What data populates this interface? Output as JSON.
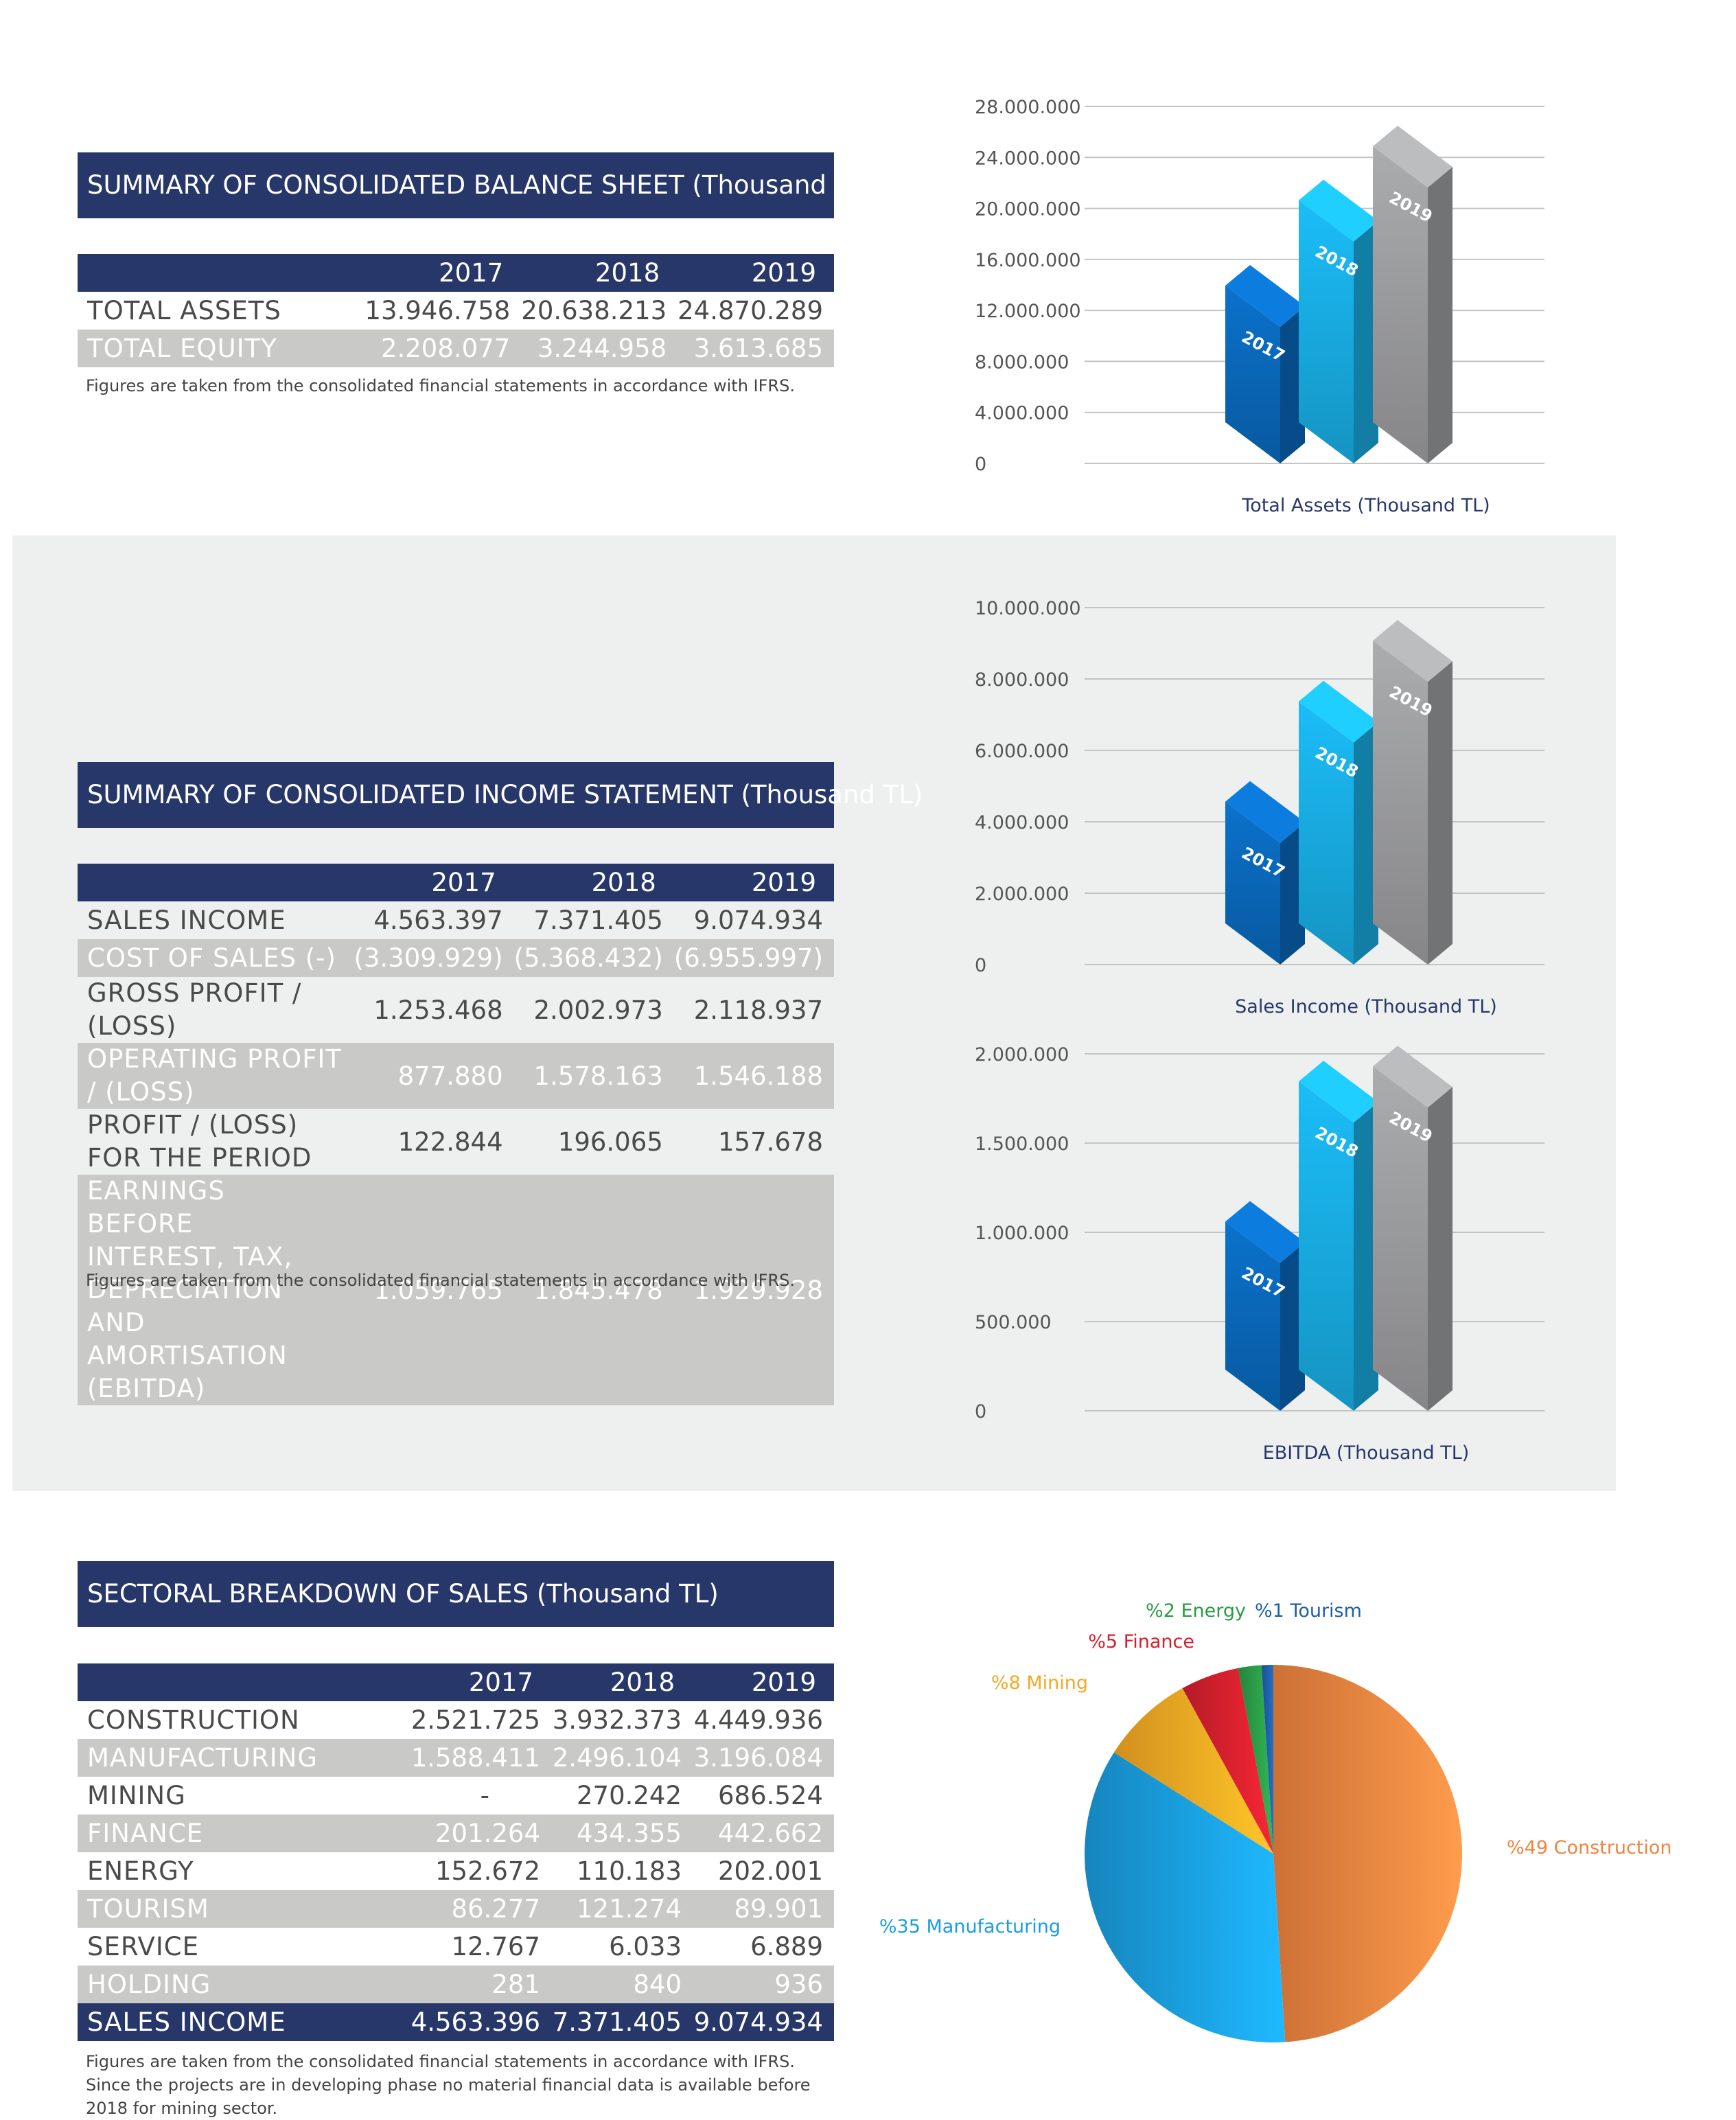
{
  "balance_sheet": {
    "title": "SUMMARY OF CONSOLIDATED BALANCE SHEET (Thousand TL)",
    "years": [
      "2017",
      "2018",
      "2019"
    ],
    "rows": [
      {
        "label": "TOTAL ASSETS",
        "values": [
          "13.946.758",
          "20.638.213",
          "24.870.289"
        ]
      },
      {
        "label": "TOTAL EQUITY",
        "values": [
          "2.208.077",
          "3.244.958",
          "3.613.685"
        ]
      }
    ],
    "note": "Figures are taken from the consolidated financial statements in accordance with IFRS."
  },
  "income_statement": {
    "title": "SUMMARY OF CONSOLIDATED INCOME STATEMENT (Thousand TL)",
    "years": [
      "2017",
      "2018",
      "2019"
    ],
    "rows": [
      {
        "label": "SALES INCOME",
        "values": [
          "4.563.397",
          "7.371.405",
          "9.074.934"
        ]
      },
      {
        "label": "COST OF SALES (-)",
        "values": [
          "(3.309.929)",
          "(5.368.432)",
          "(6.955.997)"
        ]
      },
      {
        "label": "GROSS PROFIT / (LOSS)",
        "values": [
          "1.253.468",
          "2.002.973",
          "2.118.937"
        ]
      },
      {
        "label": "OPERATING PROFIT / (LOSS)",
        "values": [
          "877.880",
          "1.578.163",
          "1.546.188"
        ]
      },
      {
        "label": "PROFIT / (LOSS) FOR THE PERIOD",
        "values": [
          "122.844",
          "196.065",
          "157.678"
        ]
      },
      {
        "label": "EARNINGS BEFORE INTEREST, TAX, DEPRECIATION AND AMORTISATION (EBITDA)",
        "values": [
          "1.059.765",
          "1.845.478",
          "1.929.928"
        ]
      }
    ],
    "note": "Figures are taken from the consolidated financial statements in accordance with IFRS."
  },
  "sectoral": {
    "title": "SECTORAL BREAKDOWN OF SALES (Thousand TL)",
    "years": [
      "2017",
      "2018",
      "2019"
    ],
    "rows": [
      {
        "label": "CONSTRUCTION",
        "values": [
          "2.521.725",
          "3.932.373",
          "4.449.936"
        ]
      },
      {
        "label": "MANUFACTURING",
        "values": [
          "1.588.411",
          "2.496.104",
          "3.196.084"
        ]
      },
      {
        "label": "MINING",
        "values": [
          "-",
          "270.242",
          "686.524"
        ]
      },
      {
        "label": "FINANCE",
        "values": [
          "201.264",
          "434.355",
          "442.662"
        ]
      },
      {
        "label": "ENERGY",
        "values": [
          "152.672",
          "110.183",
          "202.001"
        ]
      },
      {
        "label": "TOURISM",
        "values": [
          "86.277",
          "121.274",
          "89.901"
        ]
      },
      {
        "label": "SERVICE",
        "values": [
          "12.767",
          "6.033",
          "6.889"
        ]
      },
      {
        "label": "HOLDING",
        "values": [
          "281",
          "840",
          "936"
        ]
      }
    ],
    "total": {
      "label": "SALES INCOME",
      "values": [
        "4.563.396",
        "7.371.405",
        "9.074.934"
      ]
    },
    "note_lines": [
      "Figures are taken from the consolidated financial statements in accordance with IFRS.",
      "Since the projects are in developing phase no material financial data is available before",
      "2018 for mining sector."
    ]
  },
  "colors": {
    "navy": "#273769",
    "blue2017": "#0a6dc2",
    "cyan2018": "#1ab4ec",
    "grey2019": "#a3a4a6",
    "construction": "#f08440",
    "manufacturing": "#1a9de0",
    "mining": "#f7a823",
    "finance": "#d3202e",
    "energy": "#2a9b48",
    "tourism": "#1f5ea8"
  },
  "chart_data": [
    {
      "type": "bar",
      "title": "Total Assets (Thousand TL)",
      "categories": [
        "2017",
        "2018",
        "2019"
      ],
      "values": [
        13946758,
        20638213,
        24870289
      ],
      "ylim": [
        0,
        28000000
      ],
      "yticks": [
        "0",
        "4.000.000",
        "8.000.000",
        "12.000.000",
        "16.000.000",
        "20.000.000",
        "24.000.000",
        "28.000.000"
      ],
      "grid": true
    },
    {
      "type": "bar",
      "title": "Sales Income (Thousand TL)",
      "categories": [
        "2017",
        "2018",
        "2019"
      ],
      "values": [
        4563397,
        7371405,
        9074934
      ],
      "ylim": [
        0,
        10000000
      ],
      "yticks": [
        "0",
        "2.000.000",
        "4.000.000",
        "6.000.000",
        "8.000.000",
        "10.000.000"
      ],
      "grid": true
    },
    {
      "type": "bar",
      "title": "EBITDA (Thousand TL)",
      "categories": [
        "2017",
        "2018",
        "2019"
      ],
      "values": [
        1059765,
        1845478,
        1929928
      ],
      "ylim": [
        0,
        2000000
      ],
      "yticks": [
        "0",
        "500.000",
        "1.000.000",
        "1.500.000",
        "2.000.000"
      ],
      "grid": true
    },
    {
      "type": "pie",
      "slices": [
        {
          "label": "%49 Construction",
          "value": 49,
          "color": "#f08440"
        },
        {
          "label": "%35 Manufacturing",
          "value": 35,
          "color": "#1a9de0"
        },
        {
          "label": "%8 Mining",
          "value": 8,
          "color": "#f7a823"
        },
        {
          "label": "%5 Finance",
          "value": 5,
          "color": "#d3202e"
        },
        {
          "label": "%2 Energy",
          "value": 2,
          "color": "#2a9b48"
        },
        {
          "label": "%1 Tourism",
          "value": 1,
          "color": "#1f5ea8"
        }
      ]
    }
  ]
}
